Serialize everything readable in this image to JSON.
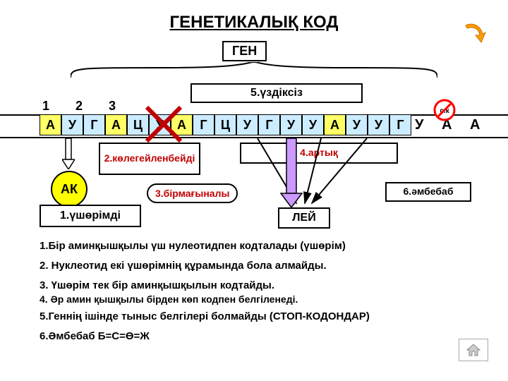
{
  "title": "ГЕНЕТИКАЛЫҚ  КОД",
  "gene_label": "ГЕН",
  "numbers": "1   2   3",
  "sequence": {
    "cells": [
      "А",
      "У",
      "Г",
      "А",
      "Ц",
      "У",
      "А",
      "Г",
      "Ц",
      "У",
      "Г",
      "У",
      "У",
      "А",
      "У",
      "У",
      "Г"
    ],
    "colors": [
      "#ffff66",
      "#ccecff",
      "#ccecff",
      "#ffff66",
      "#ccecff",
      "#ccecff",
      "#ffff66",
      "#ccecff",
      "#ccecff",
      "#ccecff",
      "#ccecff",
      "#ccecff",
      "#ccecff",
      "#ffff66",
      "#ccecff",
      "#ccecff",
      "#ccecff"
    ],
    "tail": "У  А  А"
  },
  "stop_text": "с.к",
  "labels": {
    "box5": "5.үздіксіз",
    "box2": "2.көлегейленбейді",
    "box4": "4.артық",
    "pill3": "3.бірмағыналы",
    "box6": "6.әмбебаб",
    "box1": "1.үшөрімді",
    "lei": "ЛЕЙ",
    "ak": "АК"
  },
  "colors": {
    "ak_fill": "#ffff00",
    "red_text": "#c00000",
    "arrow_orange": "#ff9900",
    "arrow_purple": "#cc99ff",
    "stop_red": "#ff0000"
  },
  "explanations": {
    "e1": "1.Бір аминқышқылы үш нулеотидпен кодталады (үшөрім)",
    "e2": "2. Нуклеотид екі үшөрімнің құрамында бола алмайды.",
    "e3": "3. Үшөрім тек бір аминқышқылын кодтайды.",
    "e4": "4. Әр амин қышқылы бірден көп кодпен белгіленеді.",
    "e5": " 5.Геннің ішінде тыныс белгілері болмайды (СТОП-КОДОНДАР)",
    "e6": "6.Әмбебаб    Б=С=Ө=Ж"
  }
}
